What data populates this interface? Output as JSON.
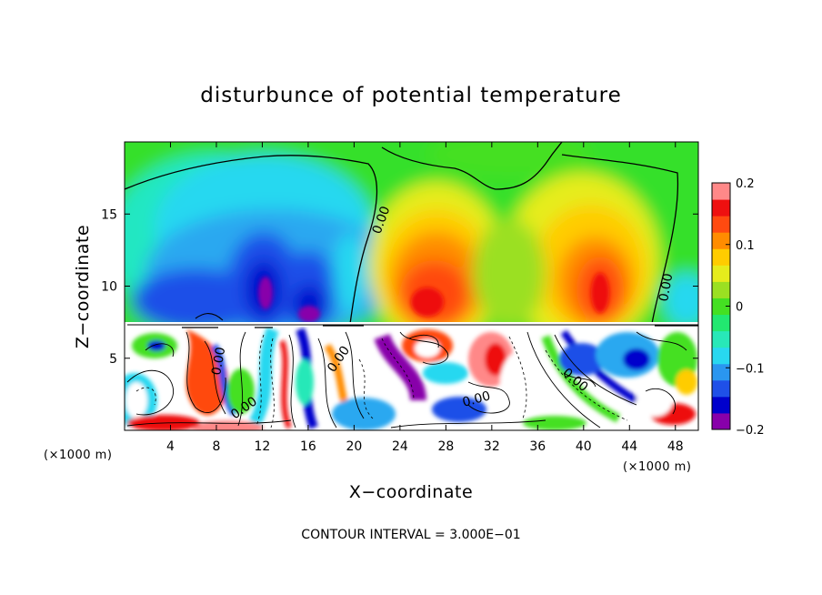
{
  "chart_data": {
    "type": "heatmap",
    "title": "disturbunce of potential temperature",
    "xlabel": "X−coordinate",
    "ylabel": "Z−coordinate",
    "x_unit": "(×1000 m)",
    "x_unit_right": "(×1000 m)",
    "xlim": [
      0,
      50
    ],
    "ylim": [
      0,
      20
    ],
    "x_ticks": [
      4,
      8,
      12,
      16,
      20,
      24,
      28,
      32,
      36,
      40,
      44,
      48
    ],
    "x_tick_labels": [
      "4",
      "8",
      "12",
      "16",
      "20",
      "24",
      "28",
      "32",
      "36",
      "40",
      "44",
      "48"
    ],
    "y_ticks": [
      5,
      10,
      15
    ],
    "y_tick_labels": [
      "5",
      "10",
      "15"
    ],
    "colorbar": {
      "min": -0.2,
      "max": 0.2,
      "ticks": [
        0.2,
        0.1,
        0,
        -0.1,
        -0.2
      ],
      "tick_labels": [
        "0.2",
        "0.1",
        "0",
        "−0.1",
        "−0.2"
      ],
      "colors": [
        "#8800aa",
        "#0000cc",
        "#1f50e8",
        "#2a96f0",
        "#28d8f0",
        "#28e8b8",
        "#22e870",
        "#44e022",
        "#9be022",
        "#e6ec1c",
        "#ffcc00",
        "#ff8c00",
        "#ff4a10",
        "#ee1010",
        "#ff8888"
      ]
    },
    "contour_label": "0.00",
    "contour_interval_text": "CONTOUR INTERVAL = 3.000E−01",
    "regions": {
      "upper_layer": {
        "z_range": [
          7.2,
          20
        ],
        "description_values": [
          {
            "x": 4,
            "z": 12,
            "value": -0.03
          },
          {
            "x": 12,
            "z": 10.5,
            "value": -0.19
          },
          {
            "x": 16,
            "z": 13,
            "value": -0.1
          },
          {
            "x": 26,
            "z": 10,
            "value": 0.16
          },
          {
            "x": 41,
            "z": 10,
            "value": 0.16
          },
          {
            "x": 34,
            "z": 18,
            "value": 0.0
          }
        ]
      },
      "boundary_z": 7.2
    }
  }
}
